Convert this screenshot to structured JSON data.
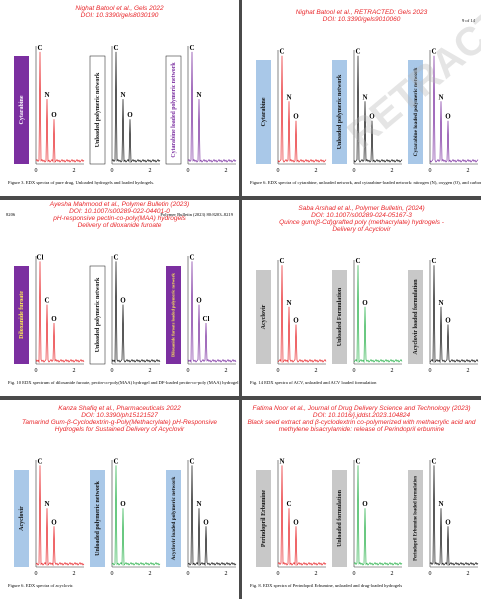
{
  "panels": [
    {
      "header": [
        "Nighat Batool et al., Gels 2022",
        "DOI: 10.3390/gels8030190"
      ],
      "spectra": [
        {
          "label": "Cytarabine",
          "color": "#e8262a",
          "box": "#7b2fa0",
          "box_text": "#ffffff",
          "peaks": [
            "C",
            "N",
            "O"
          ]
        },
        {
          "label": "Unloaded polymeric network",
          "color": "#111111",
          "box": "#ffffff",
          "box_text": "#111111",
          "peaks": [
            "C",
            "N",
            "O"
          ]
        },
        {
          "label": "Cytarabine loaded polymeric network",
          "color": "#7b2fa0",
          "box": "#ffffff",
          "box_text": "#7b2fa0",
          "peaks": [
            "C",
            "N"
          ]
        }
      ],
      "ticks": [
        "0",
        "2"
      ],
      "caption": "Figure 3. EDX spectra of pure drug, Unloaded hydrogels and loaded hydrogels."
    },
    {
      "header": [
        "Nighat Batool et al., RETRACTED: Gels 2023",
        "DOI: 10.3390/gels9010060"
      ],
      "page_number": "9 of 14",
      "watermark": "RETRACTED",
      "spectra": [
        {
          "label": "Cytarabine",
          "color": "#e8262a",
          "box": "#a9c8e8",
          "box_text": "#111111",
          "peaks": [
            "C",
            "N",
            "O"
          ]
        },
        {
          "label": "Unloaded polymeric network",
          "color": "#111111",
          "box": "#a9c8e8",
          "box_text": "#111111",
          "peaks": [
            "C",
            "N",
            "O"
          ]
        },
        {
          "label": "Cytarabine  loaded polymeric network",
          "color": "#7b2fa0",
          "box": "#a9c8e8",
          "box_text": "#111111",
          "peaks": [
            "C",
            "N",
            "O"
          ]
        }
      ],
      "ticks": [
        "0",
        "2"
      ],
      "caption": "Figure 6. EDX spectra of cytarabine, unloaded network, and cytarabine-loaded network: nitrogen (N), oxygen (O), and carbon (C)."
    },
    {
      "header": [
        "Ayesha Mahmood et al., Polymer Bulletin (2023)",
        "DOI: 10.1007/s00289-022-04401-0",
        "pH-responsive pectin-co-poly(MAA) hydrogels",
        "Delivery of diloxanide furoate"
      ],
      "page_number": "8206",
      "journal": "Polymer Bulletin (2023) 80:8203–8219",
      "spectra": [
        {
          "label": "Diloxanide furoate",
          "color": "#e8262a",
          "box": "#7b2fa0",
          "box_text": "#ffee55",
          "peaks": [
            "Cl",
            "C",
            "O"
          ]
        },
        {
          "label": "Unloaded polymeric network",
          "color": "#111111",
          "box": "#ffffff",
          "box_text": "#111111",
          "peaks": [
            "C",
            "O"
          ]
        },
        {
          "label": "Diloxanide furoate loaded polymeric network",
          "color": "#7b2fa0",
          "box": "#7b2fa0",
          "box_text": "#ffee55",
          "peaks": [
            "C",
            "O",
            "Cl"
          ]
        }
      ],
      "ticks": [
        "0",
        "2"
      ],
      "caption": "Fig. 10  EDX spectrum of diloxanide furoate, pectin-co-poly(MAA) hydrogel and DF-loaded pectin-co-poly (MAA) hydrogel"
    },
    {
      "header": [
        "Saba Arshad et al., Polymer Bulletin, (2024)",
        "DOI: 10.1007/s00289-024-05167-3",
        "Quince gum(β-Cd)grafted poly (methacrylate) hydrogels -",
        "Delivery of Acyclovir"
      ],
      "spectra": [
        {
          "label": "Acyclovir",
          "color": "#e8262a",
          "box": "#c8c8c8",
          "box_text": "#111111",
          "peaks": [
            "C",
            "N",
            "O"
          ]
        },
        {
          "label": "Unloaded Formulation",
          "color": "#2bb24c",
          "box": "#c8c8c8",
          "box_text": "#111111",
          "peaks": [
            "C",
            "O"
          ]
        },
        {
          "label": "Acyclovir loaded formulation",
          "color": "#111111",
          "box": "#c8c8c8",
          "box_text": "#111111",
          "peaks": [
            "C",
            "N",
            "O"
          ]
        }
      ],
      "ticks": [
        "0",
        "2"
      ],
      "caption": "Fig. 14  EDX spectra of ACV, unloaded and ACV loaded formulation"
    },
    {
      "header": [
        "Kanza Shafiq et al., Pharmaceuticals 2022",
        "DOI: 10.3390/ph15121527",
        "Tamarind Gum-β-Cyclodextrin-g-Poly(Methacrylate) pH-Responsive",
        "Hydrogels for Sustained Delivery of Acyclovir"
      ],
      "spectra": [
        {
          "label": "Acyclovir",
          "color": "#e8262a",
          "box": "#a9c8e8",
          "box_text": "#111111",
          "peaks": [
            "C",
            "N",
            "O"
          ]
        },
        {
          "label": "Unloaded polymeric network",
          "color": "#2bb24c",
          "box": "#a9c8e8",
          "box_text": "#111111",
          "peaks": [
            "C",
            "O"
          ]
        },
        {
          "label": "Acyclovir loaded polymeric network",
          "color": "#111111",
          "box": "#a9c8e8",
          "box_text": "#111111",
          "peaks": [
            "C",
            "N",
            "O"
          ]
        }
      ],
      "ticks": [
        "0",
        "2"
      ],
      "caption": "Figure 6. EDX spectra of acyclovir."
    },
    {
      "header": [
        "Fatima Noor et al., Journal of Drug Delivery Science and Technology (2023)",
        "DOI: 10.1016/j.jddst.2023.104824",
        "Black seed extract and β-cyclodextrin co-polymerized with methacrylic acid and",
        "methylene bisacrylamide: release of Perindopril erbumine"
      ],
      "spectra": [
        {
          "label": "Perindopril Erbumine",
          "color": "#e8262a",
          "box": "#c8c8c8",
          "box_text": "#111111",
          "peaks": [
            "N",
            "C",
            "O"
          ]
        },
        {
          "label": "Unloaded formulation",
          "color": "#2bb24c",
          "box": "#c8c8c8",
          "box_text": "#111111",
          "peaks": [
            "C",
            "O"
          ]
        },
        {
          "label": "Perindopril Erbumine loaded formulation",
          "color": "#111111",
          "box": "#c8c8c8",
          "box_text": "#111111",
          "peaks": [
            "C",
            "N",
            "O"
          ]
        }
      ],
      "ticks": [
        "0",
        "2"
      ],
      "caption": "Fig. 8.  EDX spectra of Perindopril Erbumine, unloaded and drug-loaded hydrogels"
    }
  ]
}
